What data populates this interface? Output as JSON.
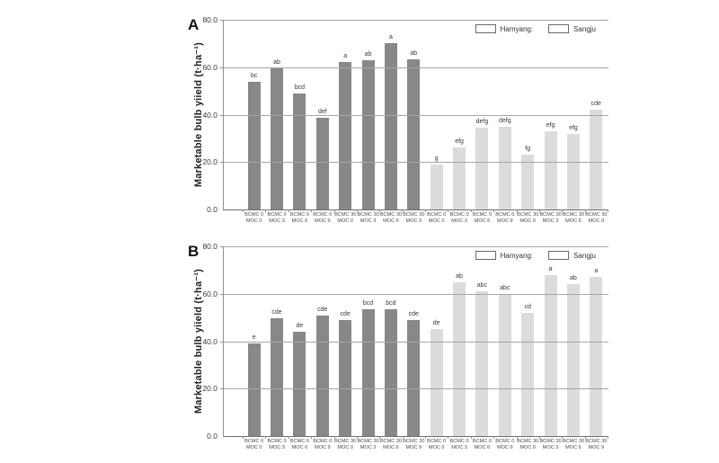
{
  "figure": {
    "background": "#ffffff",
    "series_colors": {
      "hamyang": "#888888",
      "sangju": "#dcdcdc"
    },
    "axis_color": "#8f8f8f",
    "gridline_color": "#a6a6a6"
  },
  "chart_data": [
    {
      "type": "bar",
      "panel": "A",
      "title": "",
      "xlabel": "",
      "ylabel": "Marketable bulb yiield (t·ha⁻¹)",
      "ylim": [
        0,
        80
      ],
      "yticks": [
        0,
        20,
        40,
        60,
        80
      ],
      "ytick_labels": [
        "0.0",
        "20.0",
        "40.0",
        "60.0",
        "80.0"
      ],
      "grid": true,
      "legend_position": "top-right",
      "categories": [
        [
          "BCMC 0",
          "MOC 0"
        ],
        [
          "BCMC 0",
          "MOC 3"
        ],
        [
          "BCMC 0",
          "MOC 6"
        ],
        [
          "BCMC 0",
          "MOC 9"
        ],
        [
          "BCMC 30",
          "MOC 0"
        ],
        [
          "BCMC 30",
          "MOC 3"
        ],
        [
          "BCMC 30",
          "MOC 6"
        ],
        [
          "BCMC 30",
          "MOC 9"
        ]
      ],
      "series": [
        {
          "name": "Hamyang:",
          "color": "#888888",
          "values": [
            54,
            59.5,
            49,
            38.5,
            62,
            63,
            70,
            63.5
          ],
          "letters": [
            "bc",
            "ab",
            "bcd",
            "def",
            "a",
            "ab",
            "a",
            "ab"
          ]
        },
        {
          "name": "Sangju",
          "color": "#dcdcdc",
          "values": [
            19,
            26,
            34.5,
            35,
            23,
            33,
            32,
            42
          ],
          "letters": [
            "g",
            "efg",
            "defg",
            "defg",
            "fg",
            "efg",
            "efg",
            "cde"
          ]
        }
      ]
    },
    {
      "type": "bar",
      "panel": "B",
      "title": "",
      "xlabel": "",
      "ylabel": "Marketable bulb yiield (t·ha⁻¹)",
      "ylim": [
        0,
        80
      ],
      "yticks": [
        0,
        20,
        40,
        60,
        80
      ],
      "ytick_labels": [
        "0.0",
        "20.0",
        "40.0",
        "60.0",
        "80.0"
      ],
      "grid": true,
      "legend_position": "top-right",
      "categories": [
        [
          "BCMC 0",
          "MOC 0"
        ],
        [
          "BCMC 0",
          "MOC 3"
        ],
        [
          "BCMC 0",
          "MOC 6"
        ],
        [
          "BCMC 0",
          "MOC 9"
        ],
        [
          "BCMC 30",
          "MOC 0"
        ],
        [
          "BCMC 30",
          "MOC 3"
        ],
        [
          "BCMC 30",
          "MOC 6"
        ],
        [
          "BCMC 30",
          "MOC 9"
        ]
      ],
      "series": [
        {
          "name": "Hamyang:",
          "color": "#888888",
          "values": [
            39,
            49.5,
            44,
            51,
            49,
            53.5,
            53.5,
            49
          ],
          "letters": [
            "e",
            "cde",
            "de",
            "cde",
            "cde",
            "bcd",
            "bcd",
            "cde"
          ]
        },
        {
          "name": "Sangju",
          "color": "#dcdcdc",
          "values": [
            45,
            65,
            61,
            60,
            52,
            68,
            64,
            67
          ],
          "letters": [
            "de",
            "ab",
            "abc",
            "abc",
            "cd",
            "a",
            "ab",
            "a"
          ]
        }
      ]
    }
  ]
}
